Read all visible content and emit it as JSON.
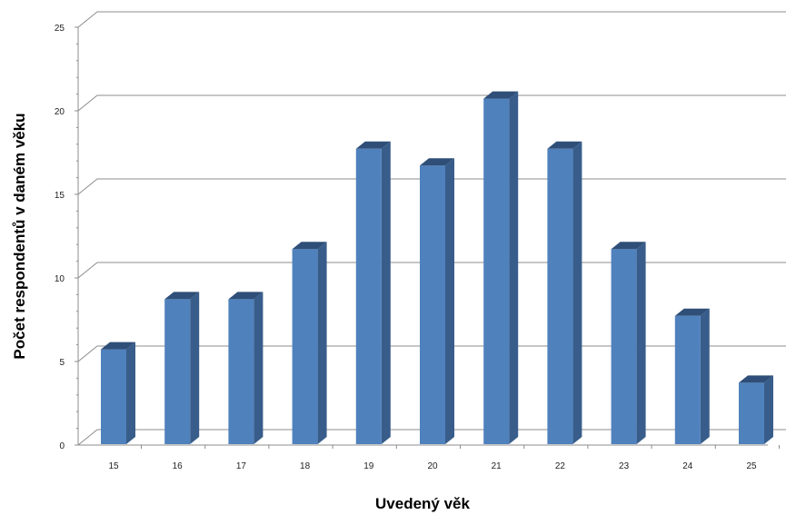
{
  "chart_data": {
    "type": "bar",
    "title": "",
    "xlabel": "Uvedený věk",
    "ylabel": "Počet respondentů v daném věku",
    "categories": [
      "15",
      "16",
      "17",
      "18",
      "19",
      "20",
      "21",
      "22",
      "23",
      "24",
      "25"
    ],
    "values": [
      6,
      9,
      9,
      12,
      18,
      17,
      21,
      18,
      12,
      8,
      4
    ],
    "ylim": [
      0,
      25
    ],
    "yticks": [
      0,
      5,
      10,
      15,
      20,
      25
    ],
    "grid": true,
    "legend": "none",
    "colors": {
      "bar_front": "#4f81bd",
      "bar_side": "#385d8a",
      "bar_top": "#2f4f78",
      "grid": "#8c8c8c"
    }
  }
}
